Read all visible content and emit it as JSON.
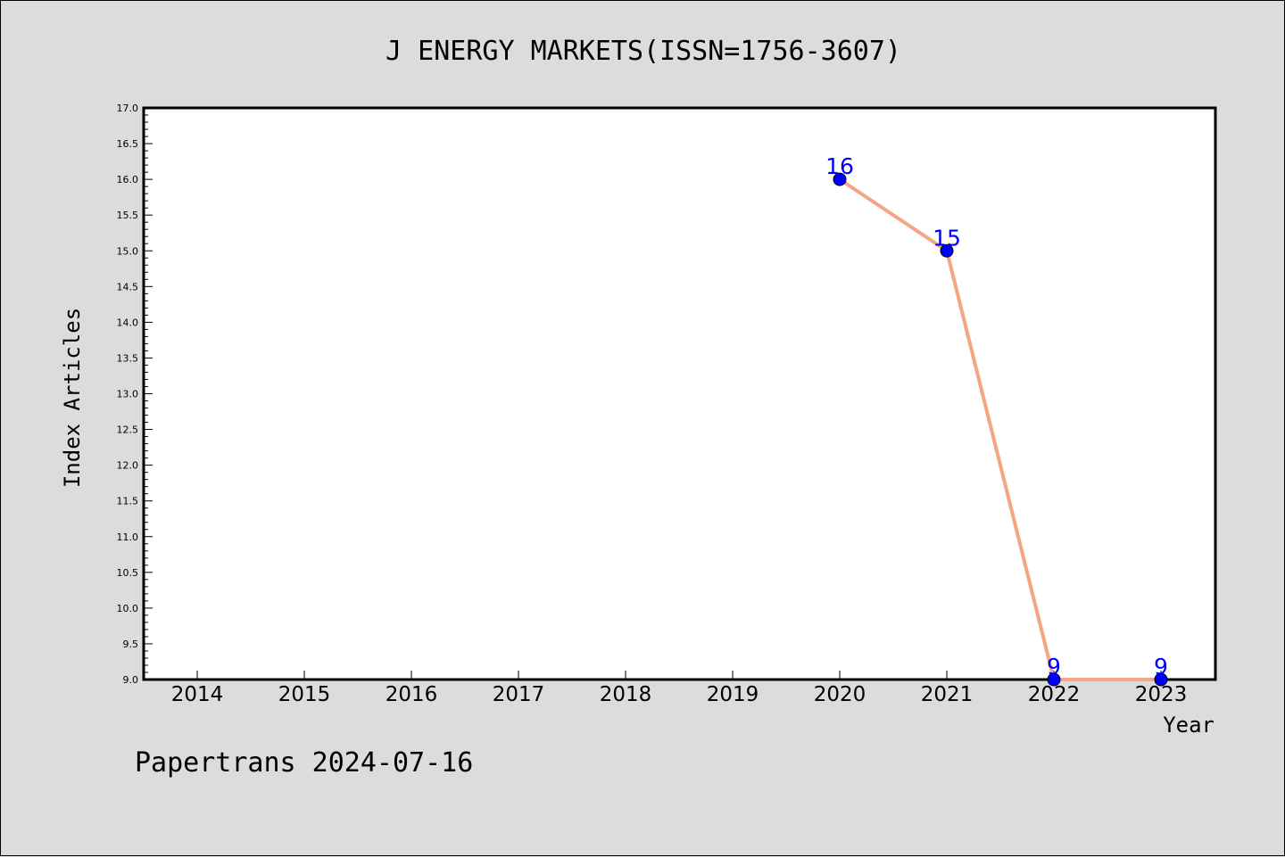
{
  "chart_data": {
    "type": "line",
    "title": "J ENERGY MARKETS(ISSN=1756-3607)",
    "xlabel": "Year",
    "ylabel": "Index Articles",
    "categories": [
      "2014",
      "2015",
      "2016",
      "2017",
      "2018",
      "2019",
      "2020",
      "2021",
      "2022",
      "2023"
    ],
    "series": [
      {
        "x": [
          "2020",
          "2021",
          "2022",
          "2023"
        ],
        "values": [
          16,
          15,
          9,
          9
        ],
        "labels": [
          "16",
          "15",
          "9",
          "9"
        ]
      }
    ],
    "ylim": [
      9.0,
      17.0
    ],
    "yticks": [
      "9.0",
      "9.5",
      "10.0",
      "10.5",
      "11.0",
      "11.5",
      "12.0",
      "12.5",
      "13.0",
      "13.5",
      "14.0",
      "14.5",
      "15.0",
      "15.5",
      "16.0",
      "16.5",
      "17.0"
    ],
    "grid": false,
    "line_color": "#f4a582",
    "marker_color": "#0000ff",
    "label_color": "#0000ff"
  },
  "footer": "Papertrans 2024-07-16"
}
